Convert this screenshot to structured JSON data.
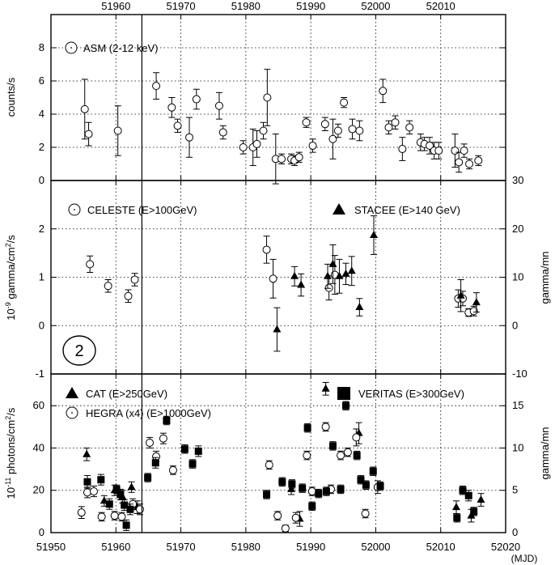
{
  "chart_data": {
    "type": "scatter",
    "shared_x": {
      "xlim": [
        51950,
        52020
      ],
      "bottom_ticks": [
        "51950",
        "51960",
        "51970",
        "51980",
        "51990",
        "52000",
        "52010",
        "52020"
      ],
      "top_ticks": [
        "51960",
        "51970",
        "51980",
        "51990",
        "52000",
        "52010"
      ],
      "unit_label": "(MJD)",
      "marker_line_x": 51964
    },
    "panels": [
      {
        "id": "asm",
        "ylabel": "counts/s",
        "ylim": [
          0,
          10
        ],
        "yticks": [
          "0",
          "2",
          "4",
          "6",
          "8"
        ],
        "series": [
          {
            "name": "ASM (2-12 keV)",
            "marker": "open-circle",
            "points": [
              [
                51955.2,
                4.3,
                1.8
              ],
              [
                51955.8,
                2.8,
                0.7
              ],
              [
                51960.3,
                3.0,
                1.5
              ],
              [
                51966.2,
                5.7,
                0.8
              ],
              [
                51968.6,
                4.4,
                0.6
              ],
              [
                51969.5,
                3.3,
                0.4
              ],
              [
                51971.3,
                2.6,
                1.2
              ],
              [
                51972.4,
                4.9,
                0.6
              ],
              [
                51975.9,
                4.5,
                0.8
              ],
              [
                51976.5,
                2.9,
                0.4
              ],
              [
                51979.6,
                2.0,
                0.4
              ],
              [
                51981.1,
                2.0,
                1.1
              ],
              [
                51981.7,
                2.2,
                0.8
              ],
              [
                51982.7,
                3.0,
                0.5
              ],
              [
                51983.3,
                5.0,
                1.7
              ],
              [
                51984.6,
                1.3,
                1.5
              ],
              [
                51985.5,
                1.3,
                0.3
              ],
              [
                51987.0,
                1.3,
                0.3
              ],
              [
                51987.5,
                1.2,
                0.3
              ],
              [
                51988.2,
                1.4,
                0.3
              ],
              [
                51989.3,
                3.5,
                0.3
              ],
              [
                51990.3,
                2.1,
                0.4
              ],
              [
                51992.2,
                3.4,
                0.4
              ],
              [
                51993.4,
                2.5,
                1.2
              ],
              [
                51994.2,
                3.0,
                0.4
              ],
              [
                51995.1,
                4.7,
                0.3
              ],
              [
                51996.4,
                3.1,
                0.6
              ],
              [
                51997.5,
                3.0,
                0.6
              ],
              [
                52001.1,
                5.4,
                0.7
              ],
              [
                52002.0,
                3.2,
                0.4
              ],
              [
                52003.0,
                3.5,
                0.4
              ],
              [
                52004.1,
                1.9,
                0.7
              ],
              [
                52005.2,
                3.2,
                0.4
              ],
              [
                52006.9,
                2.3,
                0.5
              ],
              [
                52007.5,
                2.2,
                0.4
              ],
              [
                52008.3,
                2.1,
                0.5
              ],
              [
                52009.0,
                1.8,
                0.5
              ],
              [
                52009.7,
                1.8,
                0.5
              ],
              [
                52012.2,
                1.8,
                1.0
              ],
              [
                52012.8,
                1.1,
                0.6
              ],
              [
                52013.6,
                1.8,
                0.4
              ],
              [
                52014.4,
                1.0,
                0.3
              ],
              [
                52015.8,
                1.2,
                0.3
              ]
            ]
          }
        ]
      },
      {
        "id": "celeste-stacee",
        "ylabel": "10-9 gamma/cm2/s",
        "ylim": [
          -1,
          3
        ],
        "yticks": [
          "-1",
          "0",
          "1",
          "2"
        ],
        "right_ylabel": "gamma/mn",
        "right_ylim": [
          -10,
          30
        ],
        "right_yticks": [
          "-10",
          "0",
          "10",
          "20",
          "30"
        ],
        "panel_number": "2",
        "series": [
          {
            "name": "CELESTE (E>100GeV)",
            "marker": "open-circle",
            "points": [
              [
                51956.0,
                1.27,
                0.17
              ],
              [
                51958.8,
                0.82,
                0.13
              ],
              [
                51961.9,
                0.61,
                0.13
              ],
              [
                51962.9,
                0.95,
                0.13
              ],
              [
                51983.2,
                1.57,
                0.28
              ],
              [
                51984.2,
                0.97,
                0.4
              ],
              [
                51992.8,
                0.78,
                0.25
              ],
              [
                51993.7,
                1.05,
                0.4
              ],
              [
                52012.7,
                0.56,
                0.18
              ],
              [
                52013.4,
                0.56,
                0.15
              ],
              [
                52014.3,
                0.27,
                0.08
              ],
              [
                52015.1,
                0.3,
                0.1
              ]
            ]
          },
          {
            "name": "STACEE (E>140 GeV)",
            "marker": "filled-triangle",
            "points": [
              [
                51984.8,
                -0.08,
                0.45
              ],
              [
                51987.5,
                1.02,
                0.2
              ],
              [
                51988.5,
                0.84,
                0.23
              ],
              [
                51992.6,
                1.02,
                0.25
              ],
              [
                51993.4,
                1.27,
                0.4
              ],
              [
                51994.4,
                1.02,
                0.35
              ],
              [
                51995.4,
                1.07,
                0.22
              ],
              [
                51996.3,
                1.13,
                0.3
              ],
              [
                51997.5,
                0.38,
                0.18
              ],
              [
                51999.7,
                1.87,
                0.4
              ],
              [
                52013.1,
                0.62,
                0.33
              ],
              [
                52015.5,
                0.48,
                0.2
              ]
            ]
          }
        ]
      },
      {
        "id": "cat-hegra-veritas",
        "ylabel": "10-11 photons/cm2/s",
        "ylim": [
          0,
          75
        ],
        "yticks": [
          "0",
          "20",
          "40",
          "60"
        ],
        "right_ylabel": "gamma/mn",
        "right_ylim": [
          0,
          18.75
        ],
        "right_yticks": [
          "0",
          "5",
          "10",
          "15"
        ],
        "series": [
          {
            "name": "CAT (E>250GeV)",
            "marker": "filled-triangle",
            "points": [
              [
                51955.5,
                37.0,
                3.0
              ],
              [
                51958.2,
                15.0,
                2.5
              ],
              [
                51959.8,
                20.0,
                2.5
              ],
              [
                51961.0,
                17.0,
                3.0
              ],
              [
                51962.4,
                21.5,
                2.5
              ],
              [
                51963.3,
                12.0,
                3.0
              ],
              [
                51987.0,
                20.5,
                2.5
              ],
              [
                51988.3,
                6.5,
                3.5
              ],
              [
                51992.3,
                68.0,
                3.0
              ],
              [
                51997.4,
                47.0,
                5.0
              ],
              [
                52012.4,
                12.0,
                3.0
              ],
              [
                52014.7,
                8.0,
                3.0
              ],
              [
                52016.2,
                15.5,
                3.0
              ]
            ]
          },
          {
            "name": "HEGRA (x4) (E>1000GeV)",
            "marker": "open-circle",
            "points": [
              [
                51954.7,
                9.5,
                2.8
              ],
              [
                51955.6,
                19.0,
                2.5
              ],
              [
                51956.6,
                19.5,
                2.5
              ],
              [
                51957.8,
                7.5,
                2.0
              ],
              [
                51959.8,
                8.0,
                2.0
              ],
              [
                51960.9,
                7.5,
                2.0
              ],
              [
                51962.6,
                13.5,
                2.5
              ],
              [
                51963.7,
                11.0,
                2.5
              ],
              [
                51965.2,
                42.5,
                2.5
              ],
              [
                51966.2,
                36.0,
                2.5
              ],
              [
                51967.3,
                44.5,
                2.5
              ],
              [
                51968.8,
                29.5,
                2.0
              ],
              [
                51983.6,
                32.0,
                2.0
              ],
              [
                51984.9,
                8.0,
                2.0
              ],
              [
                51986.1,
                2.0,
                1.5
              ],
              [
                51987.7,
                7.0,
                2.5
              ],
              [
                51989.4,
                36.5,
                2.0
              ],
              [
                51990.2,
                19.5,
                2.0
              ],
              [
                51992.3,
                50.0,
                2.0
              ],
              [
                51993.1,
                20.5,
                2.0
              ],
              [
                51994.6,
                36.5,
                2.0
              ],
              [
                51995.7,
                38.0,
                2.0
              ],
              [
                51997.0,
                45.0,
                4.0
              ],
              [
                51998.4,
                9.0,
                2.0
              ],
              [
                52000.3,
                21.5,
                3.0
              ]
            ]
          },
          {
            "name": "VERITAS (E>300GeV)",
            "marker": "filled-square",
            "points": [
              [
                51955.6,
                24.0,
                3.0
              ],
              [
                51957.7,
                25.0,
                2.5
              ],
              [
                51959.0,
                13.5,
                2.5
              ],
              [
                51960.1,
                20.5,
                2.0
              ],
              [
                51960.7,
                18.0,
                2.5
              ],
              [
                51961.3,
                13.0,
                2.5
              ],
              [
                51961.6,
                3.5,
                2.5
              ],
              [
                51962.2,
                11.0,
                2.5
              ],
              [
                51964.9,
                26.0,
                2.0
              ],
              [
                51966.1,
                33.0,
                2.5
              ],
              [
                51967.8,
                53.0,
                2.0
              ],
              [
                51970.6,
                39.5,
                2.0
              ],
              [
                51971.8,
                32.5,
                2.0
              ],
              [
                51972.7,
                38.5,
                2.5
              ],
              [
                51983.2,
                18.0,
                2.0
              ],
              [
                51985.6,
                24.0,
                2.0
              ],
              [
                51987.1,
                23.0,
                2.0
              ],
              [
                51988.7,
                21.0,
                2.0
              ],
              [
                51989.5,
                49.5,
                2.0
              ],
              [
                51990.2,
                12.5,
                2.0
              ],
              [
                51991.2,
                18.5,
                2.0
              ],
              [
                51992.4,
                19.5,
                2.0
              ],
              [
                51993.4,
                41.0,
                2.0
              ],
              [
                51994.6,
                20.5,
                2.0
              ],
              [
                51995.4,
                60.0,
                2.0
              ],
              [
                51997.1,
                36.5,
                2.0
              ],
              [
                51997.7,
                25.0,
                2.0
              ],
              [
                51998.5,
                22.5,
                2.0
              ],
              [
                51999.6,
                29.0,
                2.0
              ],
              [
                52000.7,
                22.0,
                2.0
              ],
              [
                52012.5,
                7.0,
                2.0
              ],
              [
                52013.4,
                20.0,
                2.0
              ],
              [
                52014.3,
                17.5,
                2.5
              ],
              [
                52015.1,
                10.0,
                2.0
              ]
            ]
          }
        ]
      }
    ]
  }
}
